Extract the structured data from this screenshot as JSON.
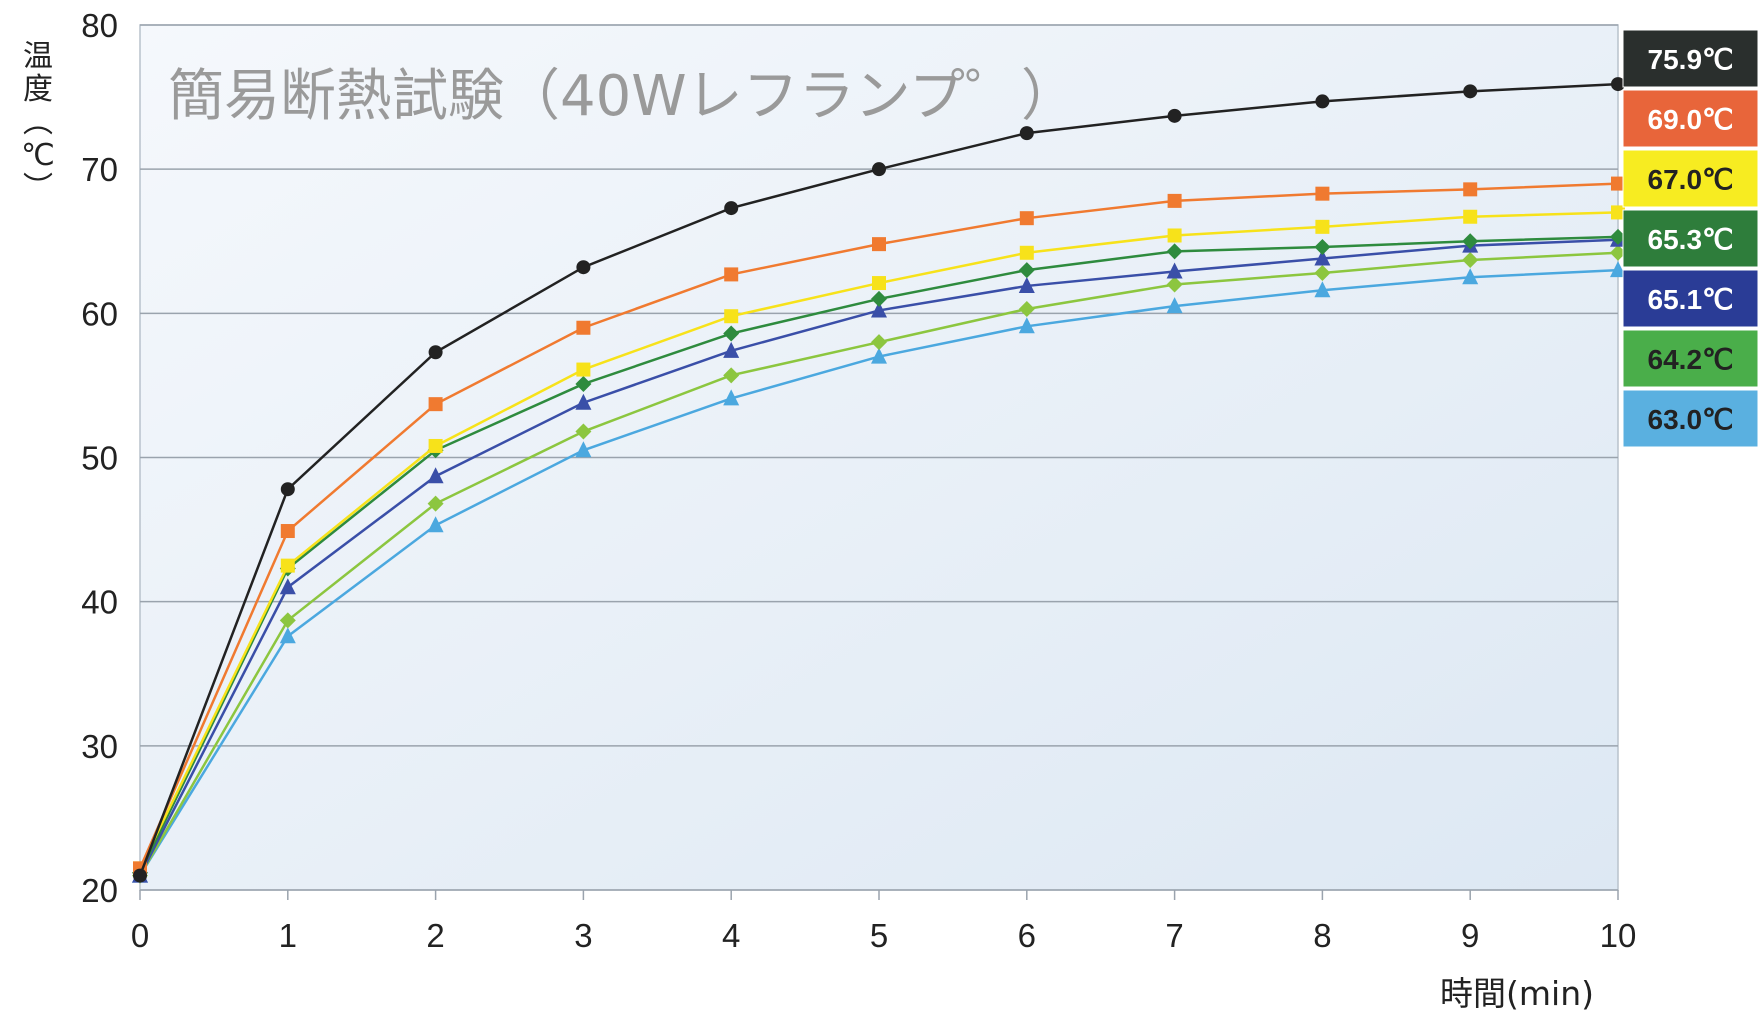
{
  "chart_data": {
    "type": "line",
    "title": "簡易断熱試験（40Wレフランプ゜）",
    "xlabel": "時間(min)",
    "ylabel": "温度(℃)",
    "xlim": [
      0,
      10
    ],
    "ylim": [
      20,
      80
    ],
    "x_ticks": [
      "0",
      "1",
      "2",
      "3",
      "4",
      "5",
      "6",
      "7",
      "8",
      "9",
      "10"
    ],
    "y_ticks": [
      "20",
      "30",
      "40",
      "50",
      "60",
      "70",
      "80"
    ],
    "grid": true,
    "legend": "right",
    "x": [
      0,
      1,
      2,
      3,
      4,
      5,
      6,
      7,
      8,
      9,
      10
    ],
    "series": [
      {
        "name": "75.9℃",
        "color": "#222222",
        "marker": "circle",
        "values": [
          21.0,
          47.8,
          57.3,
          63.2,
          67.3,
          70.0,
          72.5,
          73.7,
          74.7,
          75.4,
          75.9
        ]
      },
      {
        "name": "69.0℃",
        "color": "#f07a30",
        "marker": "square",
        "values": [
          21.5,
          44.9,
          53.7,
          59.0,
          62.7,
          64.8,
          66.6,
          67.8,
          68.3,
          68.6,
          69.0
        ]
      },
      {
        "name": "67.0℃",
        "color": "#f7e21a",
        "marker": "square",
        "values": [
          21.5,
          42.5,
          50.8,
          56.1,
          59.8,
          62.1,
          64.2,
          65.4,
          66.0,
          66.7,
          67.0
        ]
      },
      {
        "name": "65.3℃",
        "color": "#2e8b3e",
        "marker": "diamond",
        "values": [
          21.2,
          42.3,
          50.5,
          55.1,
          58.6,
          61.0,
          63.0,
          64.3,
          64.6,
          65.0,
          65.3
        ]
      },
      {
        "name": "65.1℃",
        "color": "#3a4fa8",
        "marker": "triangle",
        "values": [
          21.0,
          41.0,
          48.7,
          53.8,
          57.4,
          60.2,
          61.9,
          62.9,
          63.8,
          64.7,
          65.1
        ]
      },
      {
        "name": "64.2℃",
        "color": "#8cc63f",
        "marker": "diamond",
        "values": [
          21.0,
          38.7,
          46.8,
          51.8,
          55.7,
          58.0,
          60.3,
          62.0,
          62.8,
          63.7,
          64.2
        ]
      },
      {
        "name": "63.0℃",
        "color": "#4ba8df",
        "marker": "triangle",
        "values": [
          21.0,
          37.6,
          45.3,
          50.5,
          54.1,
          57.0,
          59.1,
          60.5,
          61.6,
          62.5,
          63.0
        ]
      }
    ],
    "legend_colors": [
      "#2a2f2d",
      "#e8653a",
      "#f7ec21",
      "#2e7d3b",
      "#2a3c96",
      "#4aae4a",
      "#5ab0e0"
    ],
    "legend_text_colors": [
      "#ffffff",
      "#ffffff",
      "#222222",
      "#ffffff",
      "#ffffff",
      "#222222",
      "#222222"
    ]
  },
  "ylabel_chars": [
    "温",
    "度",
    "︵",
    "℃",
    "︶"
  ]
}
